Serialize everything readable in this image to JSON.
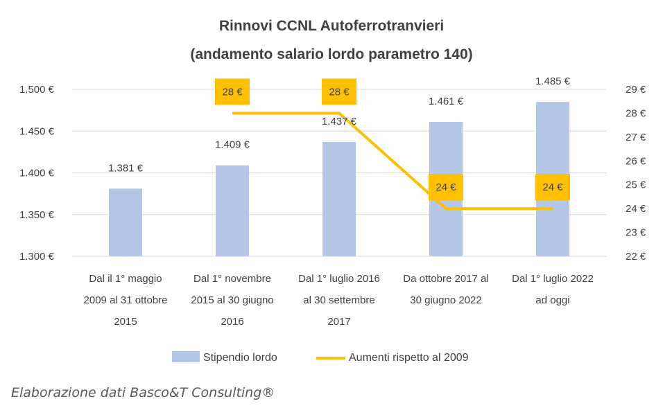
{
  "chart_data": {
    "type": "bar",
    "title": "Rinnovi CCNL Autoferrotranvieri",
    "subtitle": "(andamento salario lordo parametro 140)",
    "categories": [
      [
        "Dal il 1° maggio",
        "2009 al 31 ottobre",
        "2015"
      ],
      [
        "Dal 1° novembre",
        "2015 al 30 giugno",
        "2016"
      ],
      [
        "Dal 1° luglio 2016",
        "al 30 settembre",
        "2017"
      ],
      [
        "Da ottobre 2017 al",
        "30 giugno 2022",
        ""
      ],
      [
        "Dal 1° luglio 2022",
        "ad oggi",
        ""
      ]
    ],
    "series": [
      {
        "name": "Stipendio lordo",
        "type": "bar",
        "axis": "left",
        "values": [
          1381,
          1409,
          1437,
          1461,
          1485
        ],
        "labels": [
          "1.381 €",
          "1.409 €",
          "1.437 €",
          "1.461 €",
          "1.485 €"
        ],
        "color": "#b4c7e7"
      },
      {
        "name": "Aumenti rispetto al 2009",
        "type": "line",
        "axis": "right",
        "values": [
          null,
          28,
          28,
          24,
          24
        ],
        "labels": [
          "",
          "28 €",
          "28 €",
          "24 €",
          "24 €"
        ],
        "color": "#ffc000"
      }
    ],
    "y_left": {
      "ylim": [
        1300,
        1500
      ],
      "ticks": [
        "1.300 €",
        "1.350 €",
        "1.400 €",
        "1.450 €",
        "1.500 €"
      ],
      "tick_values": [
        1300,
        1350,
        1400,
        1450,
        1500
      ]
    },
    "y_right": {
      "ylim": [
        22,
        29
      ],
      "ticks": [
        "22 €",
        "23 €",
        "24 €",
        "25 €",
        "26 €",
        "27 €",
        "28 €",
        "29 €"
      ],
      "tick_values": [
        22,
        23,
        24,
        25,
        26,
        27,
        28,
        29
      ]
    },
    "grid": true,
    "legend_position": "bottom"
  },
  "caption": "Elaborazione dati Basco&T Consulting®"
}
